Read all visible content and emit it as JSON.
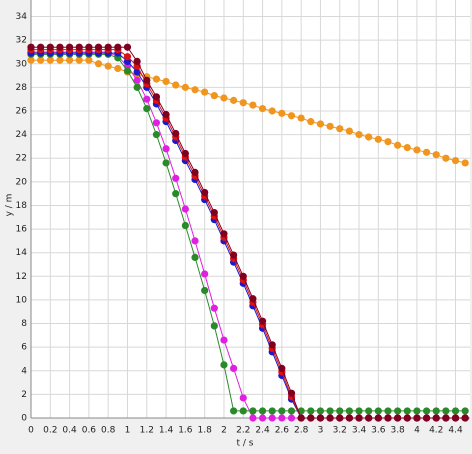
{
  "chart_data": {
    "type": "line",
    "x_label": "t / s",
    "y_label": "y / m",
    "x": [
      0,
      0.1,
      0.2,
      0.3,
      0.4,
      0.5,
      0.6,
      0.7,
      0.8,
      0.9,
      1.0,
      1.1,
      1.2,
      1.3,
      1.4,
      1.5,
      1.6,
      1.7,
      1.8,
      1.9,
      2.0,
      2.1,
      2.2,
      2.3,
      2.4,
      2.5,
      2.6,
      2.7,
      2.8,
      2.9,
      3.0,
      3.1,
      3.2,
      3.3,
      3.4,
      3.5,
      3.6,
      3.7,
      3.8,
      3.9,
      4.0,
      4.1,
      4.2,
      4.3,
      4.4,
      4.5
    ],
    "series": [
      {
        "color": "#f0961e",
        "values": [
          30.3,
          30.3,
          30.3,
          30.3,
          30.3,
          30.3,
          30.3,
          30.0,
          29.8,
          29.6,
          29.3,
          29.1,
          28.9,
          28.7,
          28.5,
          28.2,
          28.0,
          27.8,
          27.6,
          27.3,
          27.1,
          26.9,
          26.7,
          26.5,
          26.2,
          26.0,
          25.8,
          25.6,
          25.4,
          25.1,
          24.9,
          24.7,
          24.5,
          24.3,
          24.0,
          23.8,
          23.6,
          23.4,
          23.1,
          22.9,
          22.7,
          22.5,
          22.3,
          22.0,
          21.8,
          21.6
        ]
      },
      {
        "color": "#e020e0",
        "values": [
          31.0,
          31.0,
          31.0,
          31.0,
          31.0,
          31.0,
          31.0,
          31.0,
          31.0,
          30.6,
          29.8,
          28.6,
          27.0,
          25.0,
          22.8,
          20.3,
          17.7,
          15.0,
          12.2,
          9.3,
          6.6,
          4.2,
          1.7,
          0,
          0,
          0,
          0,
          0,
          0,
          0,
          0,
          0,
          0,
          0,
          0,
          0,
          0,
          0,
          0,
          0,
          0,
          0,
          0,
          0,
          0,
          0
        ]
      },
      {
        "color": "#2a8a2a",
        "values": [
          30.8,
          30.8,
          30.8,
          30.8,
          30.8,
          30.8,
          30.8,
          30.8,
          30.8,
          30.5,
          29.4,
          28.0,
          26.2,
          24.0,
          21.6,
          19.0,
          16.3,
          13.6,
          10.8,
          7.8,
          4.5,
          0.6,
          0.6,
          0.6,
          0.6,
          0.6,
          0.6,
          0.6,
          0.6,
          0.6,
          0.6,
          0.6,
          0.6,
          0.6,
          0.6,
          0.6,
          0.6,
          0.6,
          0.6,
          0.6,
          0.6,
          0.6,
          0.6,
          0.6,
          0.6,
          0.6
        ]
      },
      {
        "color": "#1a1acc",
        "values": [
          30.9,
          30.9,
          30.9,
          30.9,
          30.9,
          30.9,
          30.9,
          30.9,
          30.9,
          30.9,
          30.2,
          29.3,
          28.0,
          26.6,
          25.1,
          23.5,
          21.8,
          20.2,
          18.5,
          16.8,
          15.0,
          13.2,
          11.4,
          9.5,
          7.6,
          5.6,
          3.6,
          1.6,
          0,
          0,
          0,
          0,
          0,
          0,
          0,
          0,
          0,
          0,
          0,
          0,
          0,
          0,
          0,
          0,
          0,
          0
        ]
      },
      {
        "color": "#e01010",
        "values": [
          31.2,
          31.2,
          31.2,
          31.2,
          31.2,
          31.2,
          31.2,
          31.2,
          31.2,
          31.2,
          30.6,
          29.8,
          28.3,
          26.9,
          25.4,
          23.8,
          22.1,
          20.5,
          18.8,
          17.1,
          15.3,
          13.5,
          11.7,
          9.8,
          7.9,
          5.9,
          3.9,
          1.8,
          0,
          0,
          0,
          0,
          0,
          0,
          0,
          0,
          0,
          0,
          0,
          0,
          0,
          0,
          0,
          0,
          0,
          0
        ]
      },
      {
        "color": "#800020",
        "values": [
          31.4,
          31.4,
          31.4,
          31.4,
          31.4,
          31.4,
          31.4,
          31.4,
          31.4,
          31.4,
          31.4,
          30.2,
          28.6,
          27.2,
          25.7,
          24.1,
          22.4,
          20.8,
          19.1,
          17.4,
          15.6,
          13.8,
          12.0,
          10.1,
          8.2,
          6.2,
          4.2,
          2.1,
          0,
          0,
          0,
          0,
          0,
          0,
          0,
          0,
          0,
          0,
          0,
          0,
          0,
          0,
          0,
          0,
          0,
          0
        ]
      }
    ],
    "xlim": [
      0,
      4.55
    ],
    "ylim": [
      0,
      35.4
    ],
    "xticks": [
      0,
      0.2,
      0.4,
      0.6,
      0.8,
      1,
      1.2,
      1.4,
      1.6,
      1.8,
      2,
      2.2,
      2.4,
      2.6,
      2.8,
      3,
      3.2,
      3.4,
      3.6,
      3.8,
      4,
      4.2,
      4.4
    ],
    "yticks": [
      0,
      2,
      4,
      6,
      8,
      10,
      12,
      14,
      16,
      18,
      20,
      22,
      24,
      26,
      28,
      30,
      32,
      34
    ],
    "grid": true
  }
}
